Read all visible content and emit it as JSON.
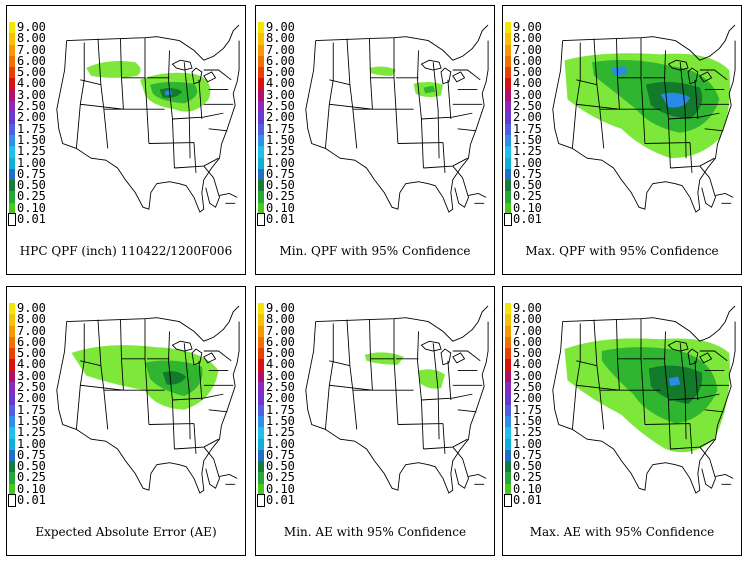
{
  "legend": {
    "levels": [
      {
        "label": "9.00",
        "color": "#f5e600"
      },
      {
        "label": "8.00",
        "color": "#f5c400"
      },
      {
        "label": "7.00",
        "color": "#f59a00"
      },
      {
        "label": "6.00",
        "color": "#f07000"
      },
      {
        "label": "5.00",
        "color": "#e84000"
      },
      {
        "label": "4.00",
        "color": "#d81010"
      },
      {
        "label": "3.00",
        "color": "#b0106a"
      },
      {
        "label": "2.50",
        "color": "#8a2ab8"
      },
      {
        "label": "2.00",
        "color": "#6a3ad0"
      },
      {
        "label": "1.75",
        "color": "#5060e0"
      },
      {
        "label": "1.50",
        "color": "#3090e8"
      },
      {
        "label": "1.25",
        "color": "#20c0e8"
      },
      {
        "label": "1.00",
        "color": "#10b0d0"
      },
      {
        "label": "0.75",
        "color": "#2070c8"
      },
      {
        "label": "0.50",
        "color": "#1a7a3a"
      },
      {
        "label": "0.25",
        "color": "#28a838"
      },
      {
        "label": "0.10",
        "color": "#48c820"
      },
      {
        "label": "0.01",
        "color": "#ffffff"
      }
    ]
  },
  "panels": [
    {
      "title": "HPC QPF (inch) 110422/1200F006"
    },
    {
      "title": "Min. QPF with 95% Confidence"
    },
    {
      "title": "Max. QPF with 95% Confidence"
    },
    {
      "title": "Expected Absolute Error (AE)"
    },
    {
      "title": "Min. AE with 95% Confidence"
    },
    {
      "title": "Max. AE with 95% Confidence"
    }
  ],
  "colors": {
    "light_green": "#7de83a",
    "medium_green": "#2fb52f",
    "dark_green": "#127a2a",
    "blue": "#2a8ae8"
  }
}
